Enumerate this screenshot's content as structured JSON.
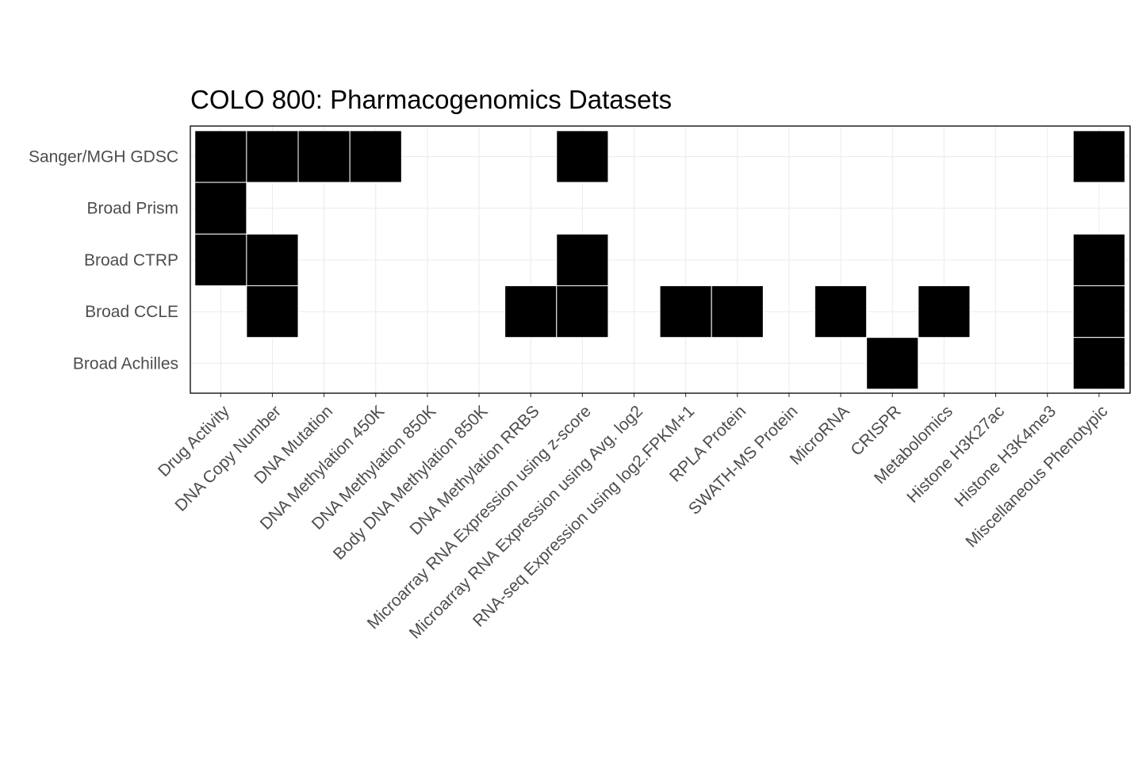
{
  "chart_data": {
    "type": "heatmap",
    "title": "COLO 800: Pharmacogenomics Datasets",
    "xlabel": "",
    "ylabel": "",
    "grid": true,
    "legend": "none",
    "fill_color": "#000000",
    "x_categories": [
      "Drug Activity",
      "DNA Copy Number",
      "DNA Mutation",
      "DNA Methylation 450K",
      "DNA Methylation 850K",
      "Body DNA Methylation 850K",
      "DNA Methylation RRBS",
      "Microarray RNA Expression using z-score",
      "Microarray RNA Expression using Avg. log2",
      "RNA-seq Expression using log2.FPKM+1",
      "RPLA Protein",
      "SWATH-MS Protein",
      "MicroRNA",
      "CRISPR",
      "Metabolomics",
      "Histone H3K27ac",
      "Histone H3K4me3",
      "Miscellaneous Phenotypic"
    ],
    "y_categories": [
      "Sanger/MGH GDSC",
      "Broad Prism",
      "Broad CTRP",
      "Broad CCLE",
      "Broad Achilles"
    ],
    "cells": [
      [
        1,
        1,
        1,
        1,
        0,
        0,
        0,
        1,
        0,
        0,
        0,
        0,
        0,
        0,
        0,
        0,
        0,
        1
      ],
      [
        1,
        0,
        0,
        0,
        0,
        0,
        0,
        0,
        0,
        0,
        0,
        0,
        0,
        0,
        0,
        0,
        0,
        0
      ],
      [
        1,
        1,
        0,
        0,
        0,
        0,
        0,
        1,
        0,
        0,
        0,
        0,
        0,
        0,
        0,
        0,
        0,
        1
      ],
      [
        0,
        1,
        0,
        0,
        0,
        0,
        1,
        1,
        0,
        1,
        1,
        0,
        1,
        0,
        1,
        0,
        0,
        1
      ],
      [
        0,
        0,
        0,
        0,
        0,
        0,
        0,
        0,
        0,
        0,
        0,
        0,
        0,
        1,
        0,
        0,
        0,
        1
      ]
    ]
  }
}
